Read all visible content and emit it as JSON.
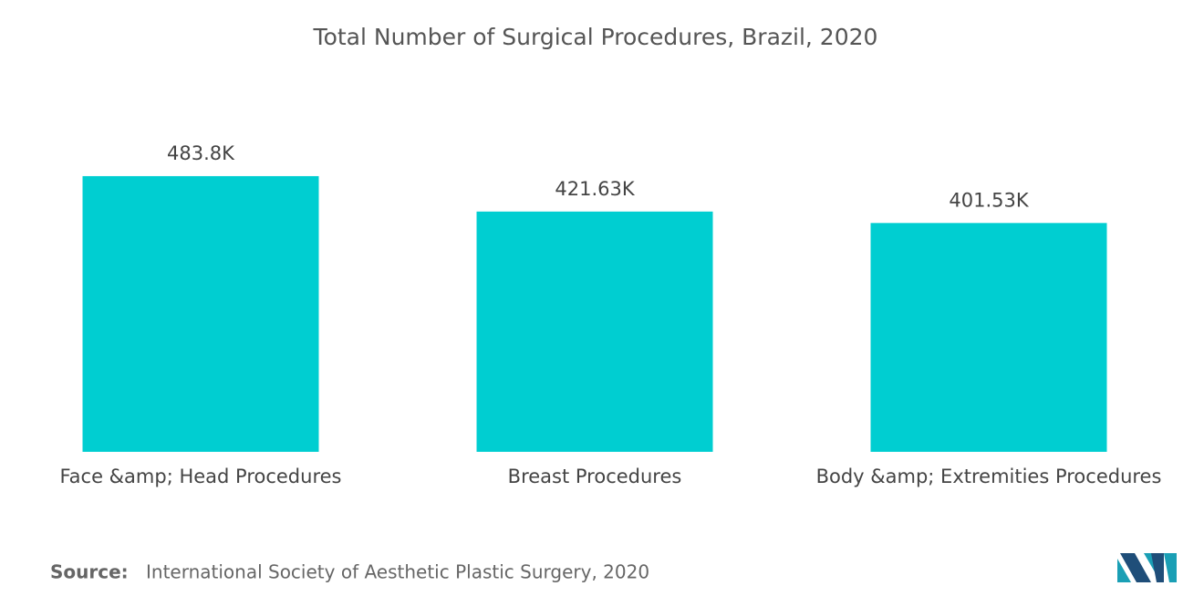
{
  "chart_data": {
    "type": "bar",
    "title": "Total Number of Surgical Procedures, Brazil, 2020",
    "categories": [
      "Face &amp; Head Procedures",
      "Breast Procedures",
      "Body &amp; Extremities Procedures"
    ],
    "values": [
      483.8,
      421.63,
      401.53
    ],
    "value_labels": [
      "483.8K",
      "421.63K",
      "401.53K"
    ],
    "color": "#00CED1",
    "source_label": "Source:",
    "source": "International Society of Aesthetic Plastic Surgery, 2020"
  }
}
